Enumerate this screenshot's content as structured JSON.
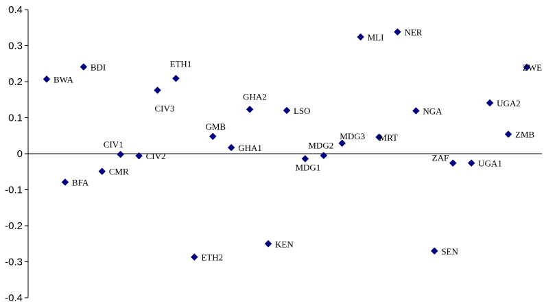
{
  "chart_data": {
    "type": "scatter",
    "title": "",
    "xlabel": "",
    "ylabel": "",
    "ylim": [
      -0.4,
      0.4
    ],
    "xlim": [
      0,
      27
    ],
    "yticks": [
      0.4,
      0.3,
      0.2,
      0.1,
      0,
      -0.1,
      -0.2,
      -0.3,
      -0.4
    ],
    "ytick_labels": [
      "0.4",
      "0.3",
      "0.2",
      "0.1",
      "0",
      "-0.1",
      "-0.2",
      "-0.3",
      "-0.4"
    ],
    "grid": false,
    "legend": "none",
    "marker_color": "#00007F",
    "points": [
      {
        "label": "BWA",
        "x": 1,
        "y": 0.207
      },
      {
        "label": "BFA",
        "x": 2,
        "y": -0.079
      },
      {
        "label": "BDI",
        "x": 3,
        "y": 0.241
      },
      {
        "label": "CMR",
        "x": 4,
        "y": -0.049
      },
      {
        "label": "CIV1",
        "x": 5,
        "y": -0.002
      },
      {
        "label": "CIV2",
        "x": 6,
        "y": -0.006
      },
      {
        "label": "CIV3",
        "x": 7,
        "y": 0.176
      },
      {
        "label": "ETH1",
        "x": 8,
        "y": 0.209
      },
      {
        "label": "ETH2",
        "x": 9,
        "y": -0.287
      },
      {
        "label": "GMB",
        "x": 10,
        "y": 0.048
      },
      {
        "label": "GHA1",
        "x": 11,
        "y": 0.017
      },
      {
        "label": "GHA2",
        "x": 12,
        "y": 0.123
      },
      {
        "label": "KEN",
        "x": 13,
        "y": -0.25
      },
      {
        "label": "LSO",
        "x": 14,
        "y": 0.12
      },
      {
        "label": "MDG1",
        "x": 15,
        "y": -0.014
      },
      {
        "label": "MDG2",
        "x": 16,
        "y": -0.005
      },
      {
        "label": "MDG3",
        "x": 17,
        "y": 0.029
      },
      {
        "label": "MLI",
        "x": 18,
        "y": 0.324
      },
      {
        "label": "MRT",
        "x": 19,
        "y": 0.046
      },
      {
        "label": "NER",
        "x": 20,
        "y": 0.338
      },
      {
        "label": "NGA",
        "x": 21,
        "y": 0.119
      },
      {
        "label": "SEN",
        "x": 22,
        "y": -0.27
      },
      {
        "label": "ZAF",
        "x": 23,
        "y": -0.026
      },
      {
        "label": "UGA1",
        "x": 24,
        "y": -0.026
      },
      {
        "label": "UGA2",
        "x": 25,
        "y": 0.141
      },
      {
        "label": "ZMB",
        "x": 26,
        "y": 0.054
      },
      {
        "label": "ZWE",
        "x": 27,
        "y": 0.24
      }
    ]
  }
}
